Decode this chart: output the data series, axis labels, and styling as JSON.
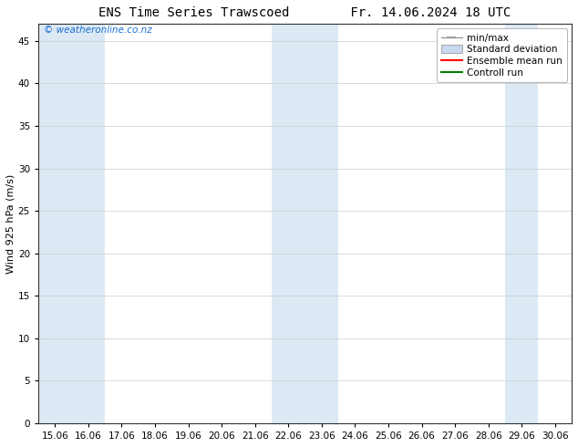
{
  "title_left": "ENS Time Series Trawscoed",
  "title_right": "Fr. 14.06.2024 18 UTC",
  "ylabel": "Wind 925 hPa (m/s)",
  "watermark": "© weatheronline.co.nz",
  "xlim_start": 15.06,
  "xlim_end": 30.06,
  "ylim_min": 0,
  "ylim_max": 47,
  "yticks": [
    0,
    5,
    10,
    15,
    20,
    25,
    30,
    35,
    40,
    45
  ],
  "xtick_labels": [
    "15.06",
    "16.06",
    "17.06",
    "18.06",
    "19.06",
    "20.06",
    "21.06",
    "22.06",
    "23.06",
    "24.06",
    "25.06",
    "26.06",
    "27.06",
    "28.06",
    "29.06",
    "30.06"
  ],
  "bg_color": "#ffffff",
  "plot_bg_color": "#ffffff",
  "shaded_bands": [
    {
      "x_start": 15.06,
      "x_end": 17.06,
      "color": "#dce9f5"
    },
    {
      "x_start": 22.06,
      "x_end": 24.06,
      "color": "#dce9f5"
    },
    {
      "x_start": 29.06,
      "x_end": 30.06,
      "color": "#dce9f5"
    }
  ],
  "legend_entries": [
    {
      "label": "min/max",
      "color": "#aaaaaa",
      "type": "errorbar"
    },
    {
      "label": "Standard deviation",
      "color": "#c8d8ee",
      "type": "band"
    },
    {
      "label": "Ensemble mean run",
      "color": "#ff0000",
      "type": "line"
    },
    {
      "label": "Controll run",
      "color": "#008000",
      "type": "line"
    }
  ],
  "title_fontsize": 10,
  "axis_label_fontsize": 8,
  "tick_fontsize": 7.5,
  "legend_fontsize": 7.5,
  "watermark_color": "#1a6fcc",
  "watermark_fontsize": 7.5
}
